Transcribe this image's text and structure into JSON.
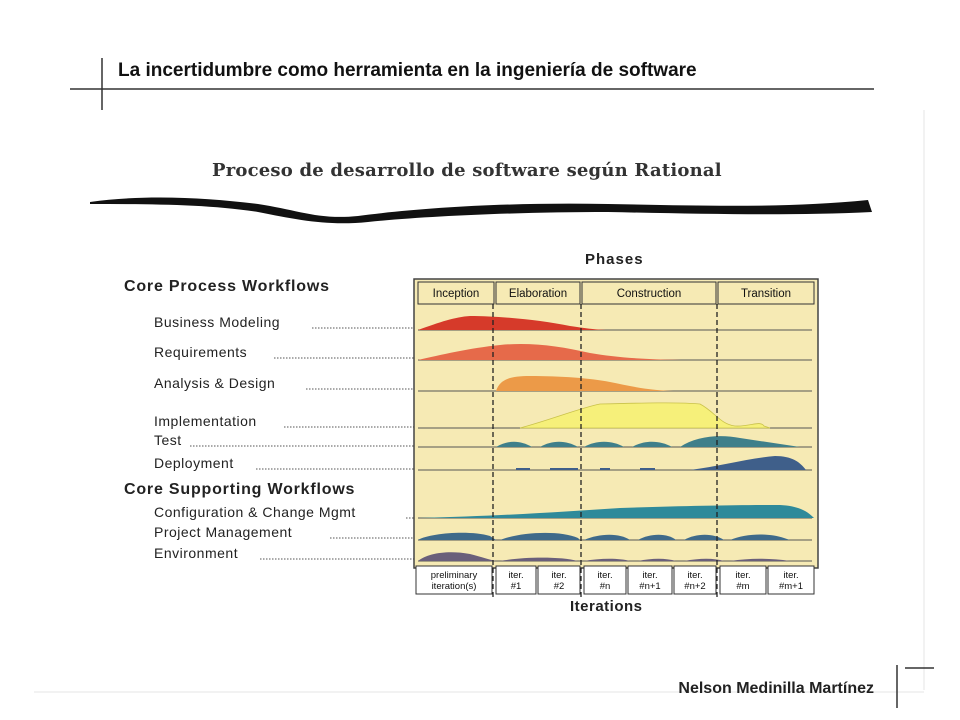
{
  "slide": {
    "title": "La incertidumbre como herramienta en la ingeniería de software",
    "author": "Nelson Medinilla Martínez"
  },
  "diagram": {
    "title": "Proceso de desarrollo de software según Rational",
    "phases_label": "Phases",
    "iterations_label": "Iterations",
    "core_process_label": "Core Process Workflows",
    "core_supporting_label": "Core Supporting Workflows",
    "phases": [
      "Inception",
      "Elaboration",
      "Construction",
      "Transition"
    ],
    "workflows": [
      {
        "name": "Business Modeling",
        "color": "#d63a2a"
      },
      {
        "name": "Requirements",
        "color": "#e66a4a"
      },
      {
        "name": "Analysis & Design",
        "color": "#ec9a48"
      },
      {
        "name": "Implementation",
        "color": "#f6f07a"
      },
      {
        "name": "Test",
        "color": "#3f7f8a"
      },
      {
        "name": "Deployment",
        "color": "#3f5f8a"
      },
      {
        "name": "Configuration & Change Mgmt",
        "color": "#2f8a9a"
      },
      {
        "name": "Project Management",
        "color": "#3f6a8a"
      },
      {
        "name": "Environment",
        "color": "#6a5f7a"
      }
    ],
    "iterations": [
      {
        "line1": "preliminary",
        "line2": "iteration(s)"
      },
      {
        "line1": "iter.",
        "line2": "#1"
      },
      {
        "line1": "iter.",
        "line2": "#2"
      },
      {
        "line1": "iter.",
        "line2": "#n"
      },
      {
        "line1": "iter.",
        "line2": "#n+1"
      },
      {
        "line1": "iter.",
        "line2": "#n+2"
      },
      {
        "line1": "iter.",
        "line2": "#m"
      },
      {
        "line1": "iter.",
        "line2": "#m+1"
      }
    ],
    "chart_background": "#f6eab4"
  }
}
